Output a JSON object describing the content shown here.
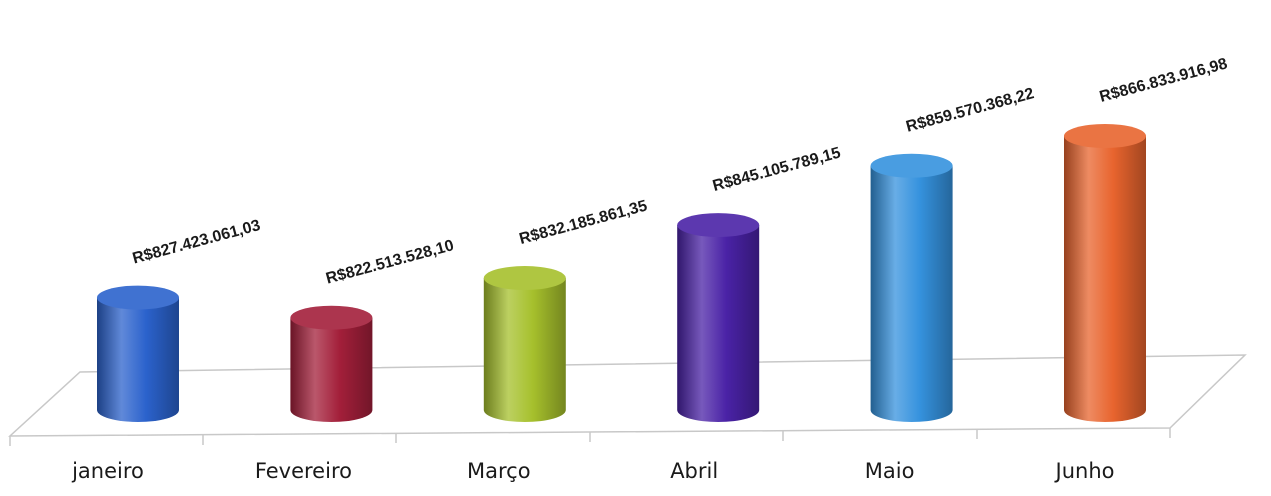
{
  "chart_data": {
    "type": "bar",
    "categories": [
      "janeiro",
      "Fevereiro",
      "Março",
      "Abril",
      "Maio",
      "Junho"
    ],
    "values": [
      827423061.03,
      822513528.1,
      832185861.35,
      845105789.15,
      859570368.22,
      866833916.98
    ],
    "value_labels": [
      "R$827.423.061,03",
      "R$822.513.528,10",
      "R$832.185.861,35",
      "R$845.105.789,15",
      "R$859.570.368,22",
      "R$866.833.916,98"
    ],
    "colors": [
      "#2b62cc",
      "#a31f3a",
      "#a6c02c",
      "#4a22a6",
      "#3592de",
      "#e8642e"
    ],
    "ylim": [
      800000000,
      870000000
    ]
  }
}
